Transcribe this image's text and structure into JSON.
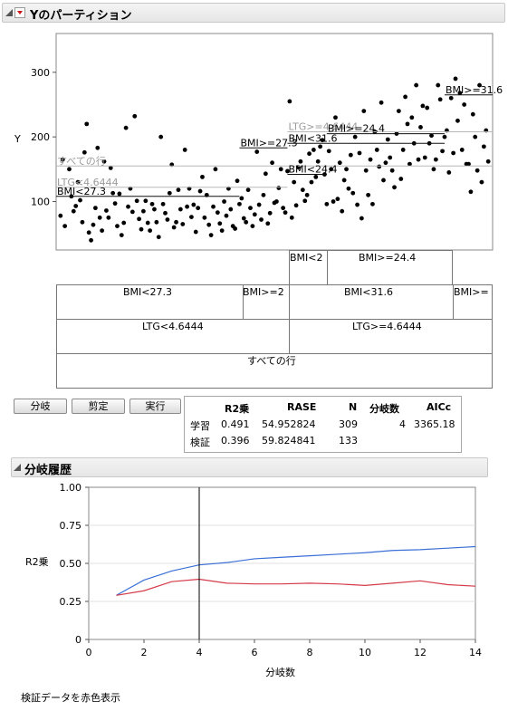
{
  "header": {
    "title": "Yのパーティション"
  },
  "chart_data": [
    {
      "type": "scatter",
      "ylabel": "Y",
      "ylim": [
        25,
        360
      ],
      "yticks": [
        100,
        200,
        300
      ],
      "points_approx": [
        [
          0.01,
          78
        ],
        [
          0.015,
          165
        ],
        [
          0.02,
          62
        ],
        [
          0.03,
          150
        ],
        [
          0.035,
          108
        ],
        [
          0.04,
          85
        ],
        [
          0.045,
          93
        ],
        [
          0.05,
          130
        ],
        [
          0.055,
          102
        ],
        [
          0.06,
          68
        ],
        [
          0.065,
          176
        ],
        [
          0.07,
          220
        ],
        [
          0.075,
          52
        ],
        [
          0.08,
          40
        ],
        [
          0.085,
          64
        ],
        [
          0.09,
          90
        ],
        [
          0.095,
          183
        ],
        [
          0.1,
          75
        ],
        [
          0.105,
          55
        ],
        [
          0.11,
          162
        ],
        [
          0.115,
          86
        ],
        [
          0.12,
          75
        ],
        [
          0.125,
          152
        ],
        [
          0.13,
          113
        ],
        [
          0.135,
          97
        ],
        [
          0.14,
          62
        ],
        [
          0.145,
          112
        ],
        [
          0.15,
          48
        ],
        [
          0.155,
          67
        ],
        [
          0.16,
          214
        ],
        [
          0.165,
          92
        ],
        [
          0.17,
          120
        ],
        [
          0.175,
          84
        ],
        [
          0.18,
          232
        ],
        [
          0.185,
          101
        ],
        [
          0.19,
          73
        ],
        [
          0.195,
          57
        ],
        [
          0.2,
          85
        ],
        [
          0.205,
          101
        ],
        [
          0.21,
          67
        ],
        [
          0.215,
          55
        ],
        [
          0.22,
          96
        ],
        [
          0.225,
          88
        ],
        [
          0.23,
          68
        ],
        [
          0.235,
          45
        ],
        [
          0.24,
          200
        ],
        [
          0.245,
          96
        ],
        [
          0.25,
          82
        ],
        [
          0.255,
          72
        ],
        [
          0.26,
          113
        ],
        [
          0.265,
          157
        ],
        [
          0.27,
          60
        ],
        [
          0.275,
          68
        ],
        [
          0.28,
          118
        ],
        [
          0.285,
          88
        ],
        [
          0.29,
          65
        ],
        [
          0.295,
          180
        ],
        [
          0.3,
          92
        ],
        [
          0.305,
          120
        ],
        [
          0.31,
          76
        ],
        [
          0.315,
          95
        ],
        [
          0.32,
          53
        ],
        [
          0.325,
          90
        ],
        [
          0.33,
          116
        ],
        [
          0.335,
          138
        ],
        [
          0.34,
          75
        ],
        [
          0.345,
          110
        ],
        [
          0.35,
          64
        ],
        [
          0.355,
          48
        ],
        [
          0.36,
          92
        ],
        [
          0.365,
          150
        ],
        [
          0.37,
          83
        ],
        [
          0.375,
          66
        ],
        [
          0.38,
          55
        ],
        [
          0.385,
          100
        ],
        [
          0.39,
          78
        ],
        [
          0.395,
          120
        ],
        [
          0.4,
          88
        ],
        [
          0.405,
          62
        ],
        [
          0.41,
          58
        ],
        [
          0.415,
          132
        ],
        [
          0.42,
          96
        ],
        [
          0.425,
          105
        ],
        [
          0.43,
          74
        ],
        [
          0.435,
          68
        ],
        [
          0.44,
          118
        ],
        [
          0.445,
          90
        ],
        [
          0.45,
          62
        ],
        [
          0.455,
          80
        ],
        [
          0.46,
          177
        ],
        [
          0.465,
          95
        ],
        [
          0.47,
          72
        ],
        [
          0.475,
          110
        ],
        [
          0.48,
          143
        ],
        [
          0.485,
          66
        ],
        [
          0.49,
          82
        ],
        [
          0.495,
          160
        ],
        [
          0.5,
          98
        ],
        [
          0.505,
          100
        ],
        [
          0.51,
          121
        ],
        [
          0.515,
          150
        ],
        [
          0.52,
          90
        ],
        [
          0.525,
          83
        ],
        [
          0.53,
          147
        ],
        [
          0.535,
          255
        ],
        [
          0.54,
          75
        ],
        [
          0.545,
          130
        ],
        [
          0.55,
          94
        ],
        [
          0.555,
          153
        ],
        [
          0.56,
          162
        ],
        [
          0.565,
          118
        ],
        [
          0.57,
          101
        ],
        [
          0.575,
          110
        ],
        [
          0.58,
          174
        ],
        [
          0.585,
          130
        ],
        [
          0.59,
          180
        ],
        [
          0.595,
          138
        ],
        [
          0.6,
          162
        ],
        [
          0.605,
          185
        ],
        [
          0.61,
          195
        ],
        [
          0.615,
          142
        ],
        [
          0.62,
          96
        ],
        [
          0.625,
          178
        ],
        [
          0.63,
          150
        ],
        [
          0.635,
          100
        ],
        [
          0.64,
          230
        ],
        [
          0.645,
          104
        ],
        [
          0.65,
          160
        ],
        [
          0.655,
          85
        ],
        [
          0.66,
          133
        ],
        [
          0.665,
          150
        ],
        [
          0.67,
          120
        ],
        [
          0.675,
          172
        ],
        [
          0.68,
          113
        ],
        [
          0.685,
          200
        ],
        [
          0.69,
          95
        ],
        [
          0.695,
          175
        ],
        [
          0.7,
          74
        ],
        [
          0.705,
          240
        ],
        [
          0.71,
          148
        ],
        [
          0.715,
          110
        ],
        [
          0.72,
          165
        ],
        [
          0.725,
          96
        ],
        [
          0.73,
          208
        ],
        [
          0.735,
          180
        ],
        [
          0.74,
          154
        ],
        [
          0.745,
          253
        ],
        [
          0.75,
          133
        ],
        [
          0.755,
          160
        ],
        [
          0.76,
          196
        ],
        [
          0.765,
          168
        ],
        [
          0.77,
          148
        ],
        [
          0.775,
          122
        ],
        [
          0.78,
          205
        ],
        [
          0.785,
          240
        ],
        [
          0.79,
          135
        ],
        [
          0.795,
          180
        ],
        [
          0.8,
          262
        ],
        [
          0.805,
          220
        ],
        [
          0.81,
          158
        ],
        [
          0.815,
          230
        ],
        [
          0.82,
          190
        ],
        [
          0.825,
          280
        ],
        [
          0.83,
          165
        ],
        [
          0.835,
          215
        ],
        [
          0.84,
          248
        ],
        [
          0.845,
          168
        ],
        [
          0.85,
          245
        ],
        [
          0.855,
          190
        ],
        [
          0.86,
          202
        ],
        [
          0.865,
          150
        ],
        [
          0.87,
          165
        ],
        [
          0.875,
          280
        ],
        [
          0.88,
          258
        ],
        [
          0.885,
          178
        ],
        [
          0.89,
          200
        ],
        [
          0.895,
          210
        ],
        [
          0.9,
          145
        ],
        [
          0.905,
          260
        ],
        [
          0.91,
          175
        ],
        [
          0.915,
          290
        ],
        [
          0.92,
          225
        ],
        [
          0.925,
          268
        ],
        [
          0.93,
          180
        ],
        [
          0.935,
          250
        ],
        [
          0.94,
          158
        ],
        [
          0.945,
          158
        ],
        [
          0.95,
          115
        ],
        [
          0.955,
          235
        ],
        [
          0.96,
          200
        ],
        [
          0.965,
          148
        ],
        [
          0.97,
          280
        ],
        [
          0.975,
          130
        ],
        [
          0.98,
          185
        ],
        [
          0.985,
          210
        ],
        [
          0.99,
          162
        ]
      ],
      "points_note": "x is normalized order position (0–1); y in data units",
      "split_labels": [
        {
          "text": "すべての行",
          "y": 155
        },
        {
          "text": "LTG<4.6444",
          "y": 122
        },
        {
          "text": "BMI<27.3",
          "y": 108
        },
        {
          "text": "BMI>=27.3",
          "y": 183
        },
        {
          "text": "LTG>=4.6444",
          "y": 208
        },
        {
          "text": "BMI<24.4",
          "y": 142
        },
        {
          "text": "BMI>=24.4",
          "y": 205
        },
        {
          "text": "BMI<31.6",
          "y": 190
        },
        {
          "text": "BMI>=31.6",
          "y": 265
        }
      ]
    },
    {
      "type": "line",
      "xlabel": "分岐数",
      "ylabel": "R2乗",
      "xlim": [
        0,
        14
      ],
      "ylim": [
        0,
        1
      ],
      "xticks": [
        "0",
        "2",
        "4",
        "6",
        "8",
        "10",
        "12",
        "14"
      ],
      "yticks": [
        "0",
        "0.25",
        "0.50",
        "0.75",
        "1.00"
      ],
      "vline_x": 4,
      "series": [
        {
          "name": "学習",
          "color": "#3a6fd6",
          "x": [
            1,
            2,
            3,
            4,
            5,
            6,
            7,
            8,
            9,
            10,
            11,
            12,
            13,
            14
          ],
          "values": [
            0.29,
            0.39,
            0.45,
            0.49,
            0.505,
            0.53,
            0.54,
            0.55,
            0.56,
            0.57,
            0.585,
            0.59,
            0.6,
            0.61
          ]
        },
        {
          "name": "検証",
          "color": "#d43a4a",
          "x": [
            1,
            2,
            3,
            4,
            5,
            6,
            7,
            8,
            9,
            10,
            11,
            12,
            13,
            14
          ],
          "values": [
            0.29,
            0.32,
            0.38,
            0.396,
            0.37,
            0.365,
            0.365,
            0.37,
            0.365,
            0.355,
            0.37,
            0.385,
            0.36,
            0.35
          ]
        }
      ]
    }
  ],
  "tree": {
    "root": "すべての行",
    "level1": [
      "LTG<4.6444",
      "LTG>=4.6444"
    ],
    "level2": [
      "BMI<27.3",
      "BMI>=2",
      "BMI<31.6",
      "BMI>="
    ],
    "level3": [
      "BMI<2",
      "BMI>=24.4"
    ]
  },
  "buttons": {
    "split": "分岐",
    "prune": "剪定",
    "go": "実行"
  },
  "stats": {
    "headers": [
      "R2乗",
      "RASE",
      "N",
      "分岐数",
      "AICc"
    ],
    "rows": [
      {
        "label": "学習",
        "r2": "0.491",
        "rase": "54.952824",
        "n": "309",
        "splits": "4",
        "aicc": "3365.18"
      },
      {
        "label": "検証",
        "r2": "0.396",
        "rase": "59.824841",
        "n": "133",
        "splits": "",
        "aicc": ""
      }
    ]
  },
  "history": {
    "title": "分岐履歴"
  },
  "footer": {
    "note": "検証データを赤色表示"
  }
}
